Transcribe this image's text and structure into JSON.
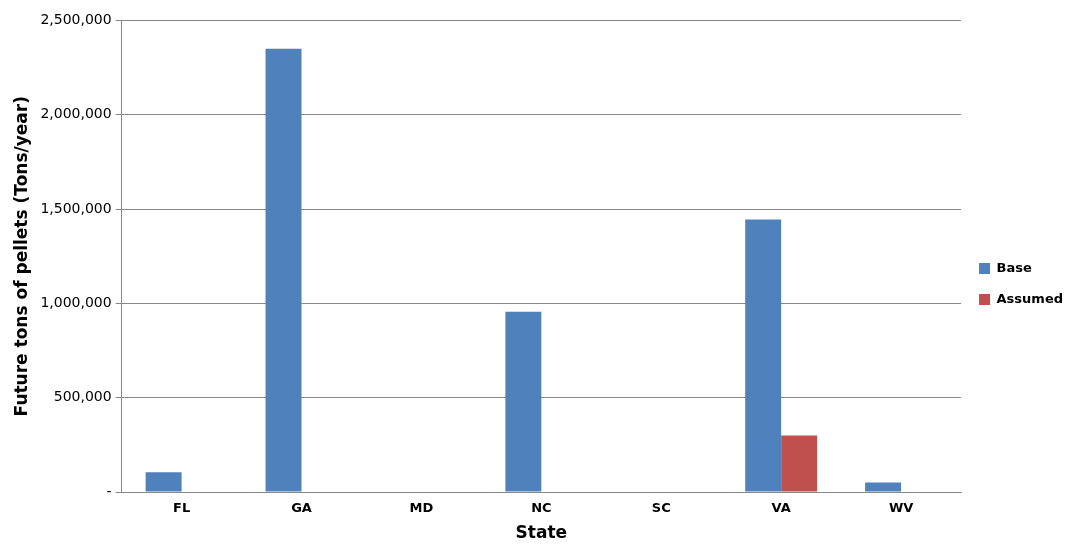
{
  "chart_data": {
    "type": "bar",
    "xlabel": "State",
    "ylabel": "Future tons of pellets (Tons/year)",
    "categories": [
      "FL",
      "GA",
      "MD",
      "NC",
      "SC",
      "VA",
      "WV"
    ],
    "series": [
      {
        "name": "Base",
        "color": "#4f81bd",
        "values": [
          105000,
          2350000,
          0,
          955000,
          0,
          1445000,
          50000
        ]
      },
      {
        "name": "Assumed",
        "color": "#c0504d",
        "values": [
          0,
          0,
          0,
          0,
          0,
          300000,
          0
        ]
      }
    ],
    "ylim": [
      0,
      2500000
    ],
    "yticks": [
      {
        "value": 0,
        "label": "-"
      },
      {
        "value": 500000,
        "label": "500,000"
      },
      {
        "value": 1000000,
        "label": "1,000,000"
      },
      {
        "value": 1500000,
        "label": "1,500,000"
      },
      {
        "value": 2000000,
        "label": "2,000,000"
      },
      {
        "value": 2500000,
        "label": "2,500,000"
      }
    ],
    "grid": "y",
    "legend": "right"
  }
}
